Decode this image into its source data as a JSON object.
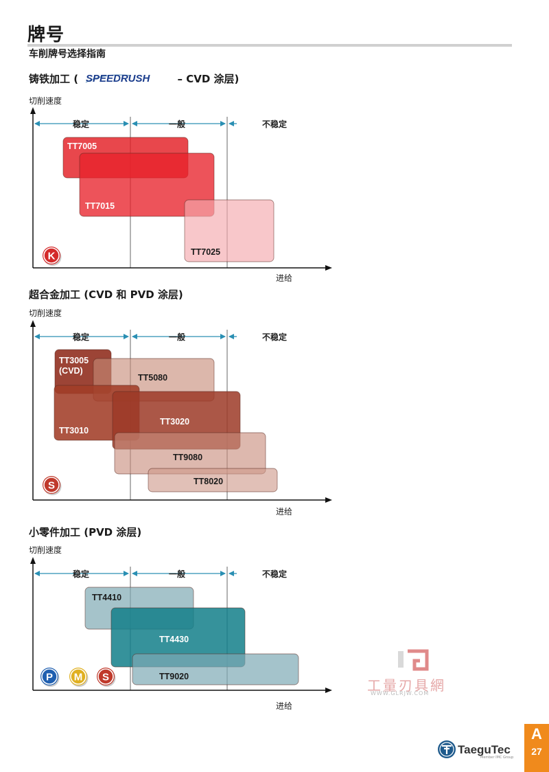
{
  "page": {
    "title": "牌号",
    "subtitle": "车削牌号选择指南",
    "page_letter": "A",
    "page_number": "27",
    "brand": "TaeguTec",
    "brand_tagline": "Member IMC Group",
    "watermark_text": "工量刃具網",
    "watermark_url": "WWW.GLRJW.COM"
  },
  "sections": [
    {
      "title_prefix": "铸铁加工 (",
      "title_logo": "SPEEDRUSH",
      "title_suffix": " – CVD 涂层)",
      "y_label": "切削速度",
      "x_label": "进给",
      "zones": [
        "稳定",
        "一般",
        "不稳定"
      ],
      "material_badges": [
        {
          "letter": "K",
          "color": "#d42a2a"
        }
      ],
      "grades": [
        {
          "name": "TT7005",
          "color": "#e31e24",
          "opacity": 0.82
        },
        {
          "name": "TT7015",
          "color": "#e8222b",
          "opacity": 0.78
        },
        {
          "name": "TT7025",
          "color": "#f4a9ad",
          "opacity": 0.65
        }
      ]
    },
    {
      "title": "超合金加工 (CVD 和 PVD 涂层)",
      "y_label": "切削速度",
      "x_label": "进给",
      "zones": [
        "稳定",
        "一般",
        "不稳定"
      ],
      "material_badges": [
        {
          "letter": "S",
          "color": "#c0392b"
        }
      ],
      "grades": [
        {
          "name": "TT3005",
          "sub": "(CVD)",
          "color": "#8e2a1a",
          "opacity": 0.88
        },
        {
          "name": "TT5080",
          "color": "#c78a78",
          "opacity": 0.62
        },
        {
          "name": "TT3010",
          "color": "#a23d28",
          "opacity": 0.88
        },
        {
          "name": "TT3020",
          "color": "#9c3a27",
          "opacity": 0.85
        },
        {
          "name": "TT9080",
          "color": "#c88d7c",
          "opacity": 0.62
        },
        {
          "name": "TT8020",
          "color": "#cf9a8a",
          "opacity": 0.62
        }
      ]
    },
    {
      "title": "小零件加工 (PVD 涂层)",
      "y_label": "切削速度",
      "x_label": "进给",
      "zones": [
        "稳定",
        "一般",
        "不稳定"
      ],
      "material_badges": [
        {
          "letter": "P",
          "color": "#1f5fb0"
        },
        {
          "letter": "M",
          "color": "#e0b020"
        },
        {
          "letter": "S",
          "color": "#c0392b"
        }
      ],
      "grades": [
        {
          "name": "TT4410",
          "color": "#7fa9b4",
          "opacity": 0.7
        },
        {
          "name": "TT4430",
          "color": "#137f89",
          "opacity": 0.85
        },
        {
          "name": "TT9020",
          "color": "#7eaab5",
          "opacity": 0.7
        }
      ]
    }
  ],
  "colors": {
    "arrow": "#2a8fb3",
    "axis": "#111111",
    "divider": "#555555"
  }
}
